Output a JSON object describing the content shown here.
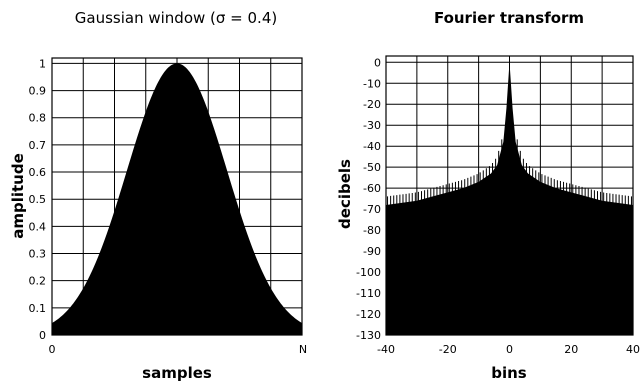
{
  "chart_data": [
    {
      "type": "area",
      "title": "Gaussian window (σ = 0.4)",
      "xlabel": "samples",
      "ylabel": "amplitude",
      "xlim": [
        0,
        1
      ],
      "ylim": [
        0,
        1.02
      ],
      "x_tick_labels": [
        "0",
        "N"
      ],
      "y_ticks": [
        0,
        0.1,
        0.2,
        0.3,
        0.4,
        0.5,
        0.6,
        0.7,
        0.8,
        0.9,
        1
      ],
      "y_tick_labels": [
        "0",
        "0.1",
        "0.2",
        "0.3",
        "0.4",
        "0.5",
        "0.6",
        "0.7",
        "0.8",
        "0.9",
        "1"
      ],
      "sigma": 0.4,
      "grid": true,
      "fill_color": "#000000",
      "series": [
        {
          "x": [
            0,
            0.05,
            0.1,
            0.15,
            0.2,
            0.25,
            0.3,
            0.35,
            0.4,
            0.45,
            0.5,
            0.55,
            0.6,
            0.65,
            0.7,
            0.75,
            0.8,
            0.85,
            0.9,
            0.95,
            1
          ],
          "values": [
            0.044,
            0.08,
            0.135,
            0.216,
            0.325,
            0.458,
            0.607,
            0.755,
            0.882,
            0.969,
            1.0,
            0.969,
            0.882,
            0.755,
            0.607,
            0.458,
            0.325,
            0.216,
            0.135,
            0.08,
            0.044
          ]
        }
      ]
    },
    {
      "type": "area",
      "title": "Fourier transform",
      "xlabel": "bins",
      "ylabel": "decibels",
      "xlim": [
        -40,
        40
      ],
      "ylim": [
        -130,
        3
      ],
      "x_ticks": [
        -40,
        -20,
        0,
        20,
        40
      ],
      "x_tick_labels": [
        "-40",
        "-20",
        "0",
        "20",
        "40"
      ],
      "y_ticks": [
        0,
        -10,
        -20,
        -30,
        -40,
        -50,
        -60,
        -70,
        -80,
        -90,
        -100,
        -110,
        -120,
        -130
      ],
      "y_tick_labels": [
        "0",
        "-10",
        "-20",
        "-30",
        "-40",
        "-50",
        "-60",
        "-70",
        "-80",
        "-90",
        "-100",
        "-110",
        "-120",
        "-130"
      ],
      "grid": true,
      "fill_color": "#000000",
      "series": [
        {
          "x": [
            -40,
            -35,
            -30,
            -25,
            -20,
            -15,
            -10,
            -6,
            -4,
            -2,
            -1,
            0,
            1,
            2,
            4,
            6,
            10,
            15,
            20,
            25,
            30,
            35,
            40
          ],
          "values": [
            -68,
            -67,
            -66,
            -64,
            -62,
            -60,
            -57,
            -53,
            -49,
            -38,
            -22,
            0,
            -22,
            -38,
            -49,
            -53,
            -57,
            -60,
            -62,
            -64,
            -66,
            -67,
            -68
          ]
        }
      ]
    }
  ]
}
